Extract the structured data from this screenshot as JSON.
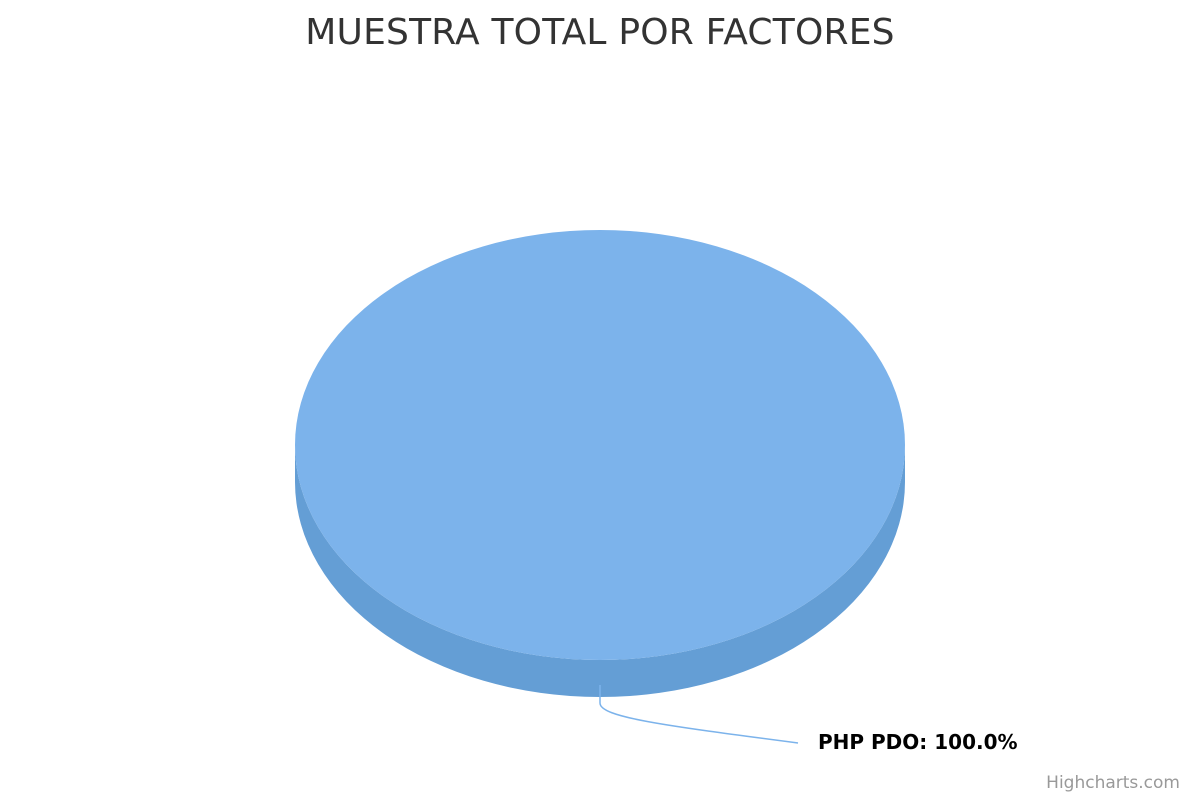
{
  "chart_data": {
    "type": "pie",
    "title": "MUESTRA TOTAL POR FACTORES",
    "series": [
      {
        "data": [
          {
            "name": "PHP PDO",
            "value": 100.0,
            "label": "PHP PDO: 100.0%"
          }
        ]
      }
    ],
    "three_d": true,
    "legend": false
  },
  "colors": {
    "slice_top": "#7cb3eb",
    "slice_side": "#649ed5",
    "connector": "#7cb3eb",
    "title": "#333333",
    "credits": "#999999"
  },
  "credits": "Highcharts.com"
}
